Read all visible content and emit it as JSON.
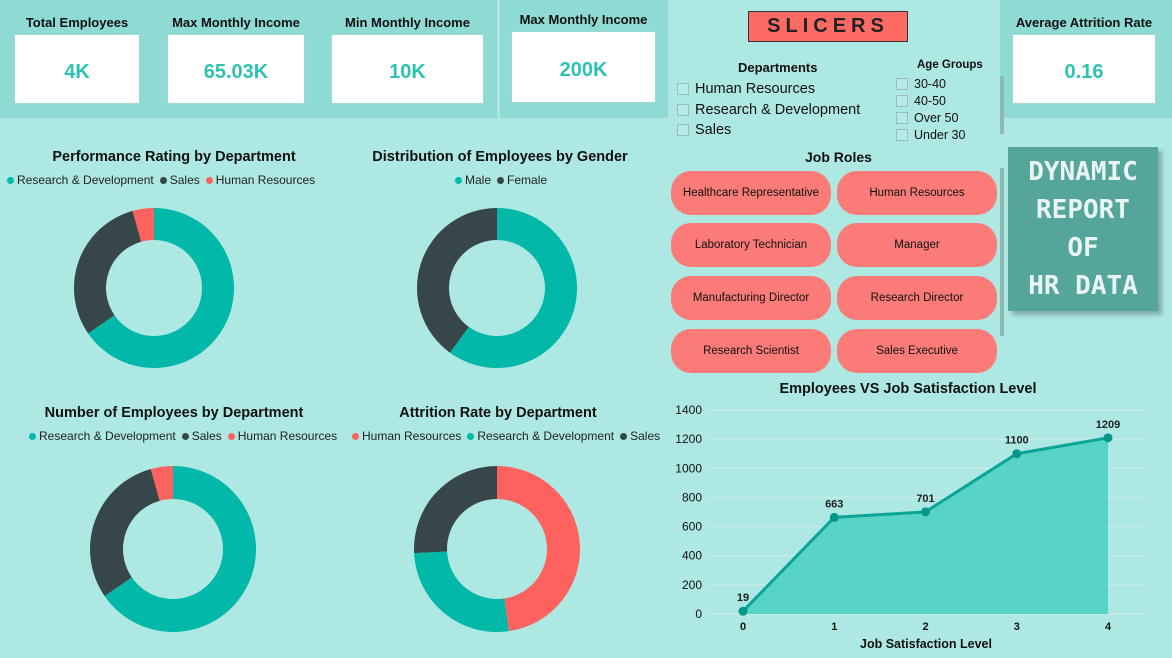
{
  "kpis": [
    {
      "label": "Total Employees",
      "value": "4K"
    },
    {
      "label": "Max Monthly Income",
      "value": "65.03K"
    },
    {
      "label": "Min Monthly Income",
      "value": "10K"
    },
    {
      "label": "Max Monthly Income",
      "value": "200K"
    },
    {
      "label": "Average Attrition Rate",
      "value": "0.16"
    }
  ],
  "slicers": {
    "title": "SLICERS",
    "departments_title": "Departments",
    "departments": [
      "Human Resources",
      "Research & Development",
      "Sales"
    ],
    "age_groups_title": "Age Groups",
    "age_groups": [
      "30-40",
      "40-50",
      "Over 50",
      "Under 30"
    ],
    "job_roles_title": "Job Roles",
    "job_roles": [
      "Healthcare Representative",
      "Human Resources",
      "Laboratory Technician",
      "Manager",
      "Manufacturing Director",
      "Research Director",
      "Research Scientist",
      "Sales Executive"
    ]
  },
  "banner": {
    "lines": [
      "DYNAMIC",
      "REPORT",
      "OF",
      "HR DATA"
    ]
  },
  "colors": {
    "teal": "#02b8a8",
    "dark": "#374649",
    "coral": "#fd625e",
    "area": "#4fd0c4",
    "line": "#0aa596"
  },
  "chart_data": [
    {
      "type": "pie",
      "title": "Performance Rating by Department",
      "legend": [
        "Research & Development",
        "Sales",
        "Human Resources"
      ],
      "values": [
        65.4,
        30.3,
        4.3
      ],
      "colors": [
        "#02b8a8",
        "#374649",
        "#fd625e"
      ]
    },
    {
      "type": "pie",
      "title": "Distribution of Employees by Gender",
      "legend": [
        "Male",
        "Female"
      ],
      "values": [
        60,
        40
      ],
      "colors": [
        "#02b8a8",
        "#374649"
      ]
    },
    {
      "type": "pie",
      "title": "Number of Employees by Department",
      "legend": [
        "Research & Development",
        "Sales",
        "Human Resources"
      ],
      "values": [
        65.4,
        30.3,
        4.3
      ],
      "colors": [
        "#02b8a8",
        "#374649",
        "#fd625e"
      ]
    },
    {
      "type": "pie",
      "title": "Attrition Rate by Department",
      "legend": [
        "Human Resources",
        "Research & Development",
        "Sales"
      ],
      "values": [
        47.7,
        26.5,
        25.8
      ],
      "colors": [
        "#fd625e",
        "#02b8a8",
        "#374649"
      ]
    },
    {
      "type": "area",
      "title": "Employees VS Job Satisfaction Level",
      "xlabel": "Job Satisfaction Level",
      "x": [
        0,
        1,
        2,
        3,
        4
      ],
      "y": [
        19,
        663,
        701,
        1100,
        1209
      ],
      "labels": [
        "19",
        "663",
        "701",
        "1100",
        "1209"
      ],
      "ylim": [
        0,
        1400
      ],
      "yticks": [
        0,
        200,
        400,
        600,
        800,
        1000,
        1200,
        1400
      ],
      "grid": true
    }
  ]
}
